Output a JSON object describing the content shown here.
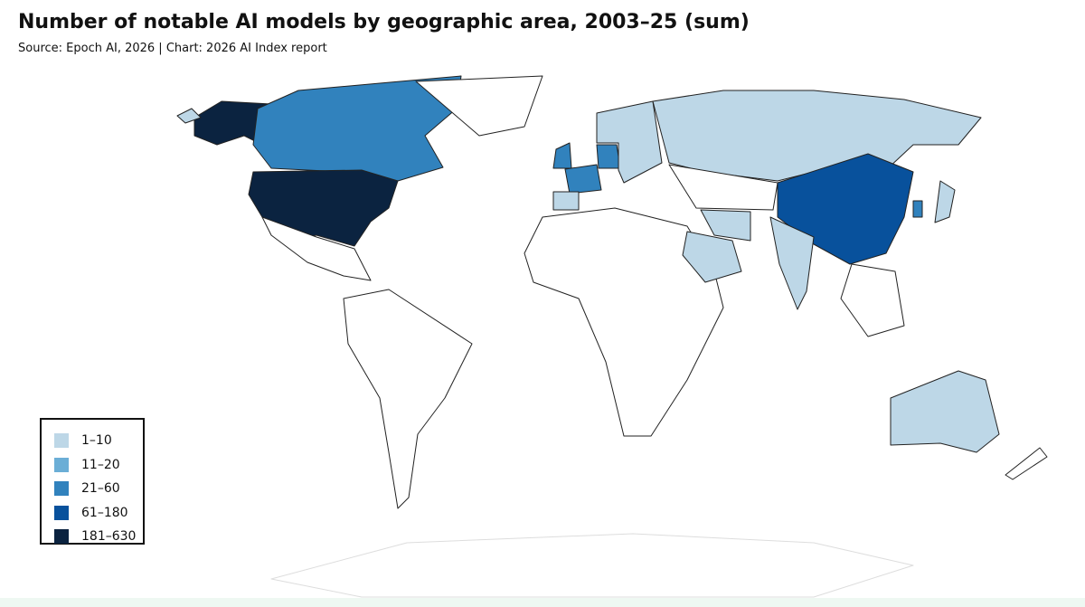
{
  "header": {
    "title": "Number of notable AI models by geographic area, 2003–25 (sum)",
    "source": "Source: Epoch AI, 2026 | Chart: 2026 AI Index report"
  },
  "legend": {
    "items": [
      {
        "label": "1–10",
        "color": "#bdd7e7"
      },
      {
        "label": "11–20",
        "color": "#6baed6"
      },
      {
        "label": "21–60",
        "color": "#3182bd"
      },
      {
        "label": "61–180",
        "color": "#08519c"
      },
      {
        "label": "181–630",
        "color": "#0b2340"
      }
    ]
  }
}
